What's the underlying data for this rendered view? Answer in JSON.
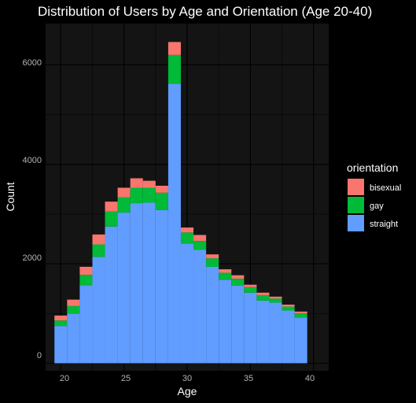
{
  "chart_data": {
    "type": "bar",
    "stacked": true,
    "title": "Distribution of Users by Age and Orientation (Age 20-40)",
    "xlabel": "Age",
    "ylabel": "Count",
    "x": [
      20,
      21,
      22,
      23,
      24,
      25,
      26,
      27,
      28,
      29,
      30,
      31,
      32,
      33,
      34,
      35,
      36,
      37,
      38,
      39,
      40
    ],
    "xlim": [
      18.8,
      41.2
    ],
    "ylim": [
      -150,
      6830
    ],
    "x_ticks": [
      "20",
      "25",
      "30",
      "35",
      "40"
    ],
    "y_ticks": [
      "0",
      "2000",
      "4000",
      "6000"
    ],
    "grid": true,
    "legend": {
      "title": "orientation",
      "position": "right"
    },
    "series": [
      {
        "name": "straight",
        "color": "#619CFF",
        "values": [
          750,
          1000,
          1570,
          2140,
          2750,
          3030,
          3220,
          3230,
          3080,
          5620,
          2410,
          2280,
          1940,
          1680,
          1560,
          1420,
          1260,
          1220,
          1060,
          920,
          0
        ]
      },
      {
        "name": "gay",
        "color": "#00BA38",
        "values": [
          110,
          150,
          210,
          250,
          300,
          310,
          310,
          300,
          350,
          580,
          220,
          180,
          170,
          140,
          140,
          110,
          110,
          80,
          80,
          80,
          0
        ]
      },
      {
        "name": "bisexual",
        "color": "#F8766D",
        "values": [
          100,
          130,
          160,
          200,
          200,
          190,
          190,
          140,
          140,
          260,
          100,
          120,
          80,
          70,
          70,
          50,
          50,
          40,
          40,
          40,
          0
        ]
      }
    ]
  }
}
